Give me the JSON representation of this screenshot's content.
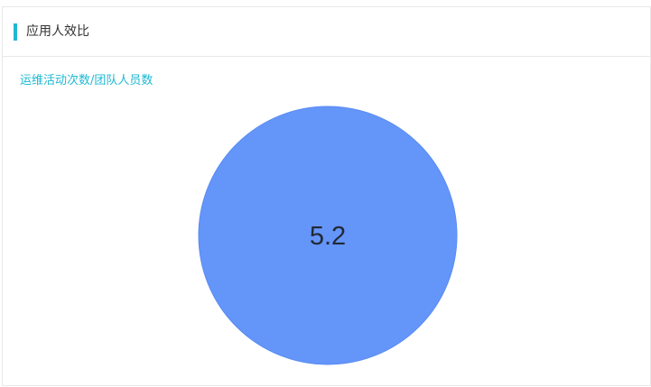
{
  "panel": {
    "title": "应用人效比",
    "metric_label": "运维活动次数/团队人员数"
  },
  "colors": {
    "accent": "#1fb8d3",
    "pie_fill": "#6495f9",
    "pie_stroke": "#5a8cf2",
    "value_text": "#222a35"
  },
  "chart_data": {
    "type": "pie",
    "categories": [
      ""
    ],
    "values": [
      5.2
    ],
    "center_label": "5.2"
  }
}
